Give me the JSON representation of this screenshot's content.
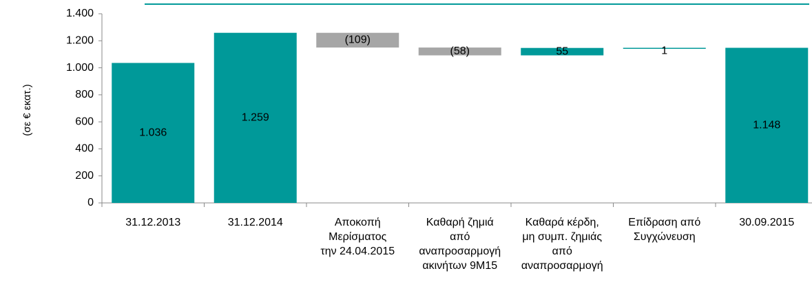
{
  "chart_data": {
    "type": "waterfall",
    "y_label": "(σε € εκατ.)",
    "categories": [
      [
        "31.12.2013"
      ],
      [
        "31.12.2014"
      ],
      [
        "Αποκοπή",
        "Μερίσματος",
        "την 24.04.2015"
      ],
      [
        "Καθαρή ζημιά",
        "από",
        "αναπροσαρμογή",
        "ακινήτων 9M15"
      ],
      [
        "Καθαρά κέρδη,",
        "μη συμπ. ζημιάς",
        "από",
        "αναπροσαρμογή"
      ],
      [
        "Επίδραση από",
        "Συγχώνευση"
      ],
      [
        "30.09.2015"
      ]
    ],
    "measure": [
      "absolute",
      "absolute",
      "relative",
      "relative",
      "relative",
      "relative",
      "absolute"
    ],
    "values": [
      1036,
      1259,
      -109,
      -58,
      55,
      1,
      1148
    ],
    "value_labels": [
      "1.036",
      "1.259",
      "(109)",
      "(58)",
      "55",
      "1",
      "1.148"
    ],
    "colors": [
      "#009999",
      "#009999",
      "#a6a6a6",
      "#a6a6a6",
      "#009999",
      "#009999",
      "#009999"
    ],
    "ylim": [
      0,
      1400
    ],
    "yticks": [
      0,
      200,
      400,
      600,
      800,
      {
        "value": 1000,
        "label": "1.000"
      },
      {
        "value": 1200,
        "label": "1.200"
      },
      {
        "value": 1400,
        "label": "1.400"
      }
    ]
  }
}
